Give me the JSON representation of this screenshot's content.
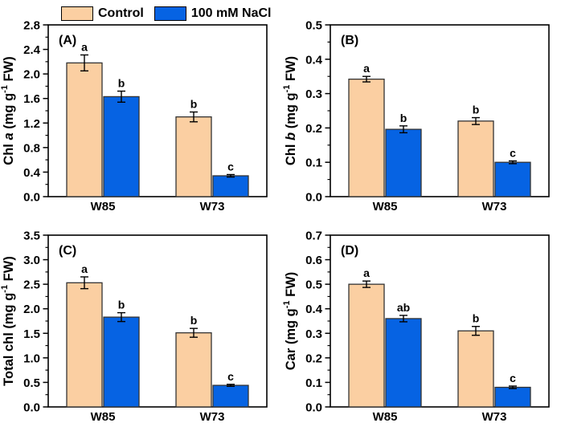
{
  "legend": {
    "items": [
      {
        "label": "Control",
        "color": "#fbcfa2"
      },
      {
        "label": "100 mM NaCl",
        "color": "#0663e3"
      }
    ]
  },
  "styles": {
    "bar_border": "#333333",
    "axis_color": "#000000",
    "error_bar_color": "#000000",
    "text_color": "#000000",
    "background": "#ffffff"
  },
  "chart_data": [
    {
      "type": "bar",
      "panel_label": "(A)",
      "ylabel": "Chl a (mg g⁻¹ FW)",
      "ylabel_parts": [
        {
          "t": "Chl "
        },
        {
          "t": "a ",
          "italic": true
        },
        {
          "t": "(mg g"
        },
        {
          "t": "-1",
          "sup": true
        },
        {
          "t": " FW)"
        }
      ],
      "ylim": [
        0,
        2.8
      ],
      "ytick_step": 0.4,
      "yminor_step": 0.2,
      "tick_decimals": 1,
      "grid": false,
      "categories": [
        "W85",
        "W73"
      ],
      "series": [
        {
          "name": "Control",
          "color": "#fbcfa2",
          "values": [
            2.18,
            1.3
          ],
          "errors": [
            0.13,
            0.08
          ],
          "sig_letters": [
            "a",
            "b"
          ]
        },
        {
          "name": "100 mM NaCl",
          "color": "#0663e3",
          "values": [
            1.63,
            0.34
          ],
          "errors": [
            0.09,
            0.02
          ],
          "sig_letters": [
            "b",
            "c"
          ]
        }
      ]
    },
    {
      "type": "bar",
      "panel_label": "(B)",
      "ylabel": "Chl b (mg g⁻¹ FW)",
      "ylabel_parts": [
        {
          "t": "Chl "
        },
        {
          "t": "b ",
          "italic": true
        },
        {
          "t": "(mg g"
        },
        {
          "t": "-1",
          "sup": true
        },
        {
          "t": " FW)"
        }
      ],
      "ylim": [
        0,
        0.5
      ],
      "ytick_step": 0.1,
      "yminor_step": 0.05,
      "tick_decimals": 1,
      "grid": false,
      "categories": [
        "W85",
        "W73"
      ],
      "series": [
        {
          "name": "Control",
          "color": "#fbcfa2",
          "values": [
            0.342,
            0.22
          ],
          "errors": [
            0.008,
            0.01
          ],
          "sig_letters": [
            "a",
            "b"
          ]
        },
        {
          "name": "100 mM NaCl",
          "color": "#0663e3",
          "values": [
            0.196,
            0.1
          ],
          "errors": [
            0.01,
            0.004
          ],
          "sig_letters": [
            "b",
            "c"
          ]
        }
      ]
    },
    {
      "type": "bar",
      "panel_label": "(C)",
      "ylabel": "Total chl (mg g⁻¹ FW)",
      "ylabel_parts": [
        {
          "t": "Total chl (mg g"
        },
        {
          "t": "-1",
          "sup": true
        },
        {
          "t": " FW)"
        }
      ],
      "ylim": [
        0,
        3.5
      ],
      "ytick_step": 0.5,
      "yminor_step": 0.25,
      "tick_decimals": 1,
      "grid": false,
      "categories": [
        "W85",
        "W73"
      ],
      "series": [
        {
          "name": "Control",
          "color": "#fbcfa2",
          "values": [
            2.53,
            1.51
          ],
          "errors": [
            0.12,
            0.09
          ],
          "sig_letters": [
            "a",
            "b"
          ]
        },
        {
          "name": "100 mM NaCl",
          "color": "#0663e3",
          "values": [
            1.83,
            0.44
          ],
          "errors": [
            0.09,
            0.02
          ],
          "sig_letters": [
            "b",
            "c"
          ]
        }
      ]
    },
    {
      "type": "bar",
      "panel_label": "(D)",
      "ylabel": "Car (mg g⁻¹ FW)",
      "ylabel_parts": [
        {
          "t": "Car (mg g"
        },
        {
          "t": "-1",
          "sup": true
        },
        {
          "t": " FW)"
        }
      ],
      "ylim": [
        0,
        0.7
      ],
      "ytick_step": 0.1,
      "yminor_step": 0.05,
      "tick_decimals": 1,
      "grid": false,
      "categories": [
        "W85",
        "W73"
      ],
      "series": [
        {
          "name": "Control",
          "color": "#fbcfa2",
          "values": [
            0.5,
            0.31
          ],
          "errors": [
            0.013,
            0.018
          ],
          "sig_letters": [
            "a",
            "b"
          ]
        },
        {
          "name": "100 mM NaCl",
          "color": "#0663e3",
          "values": [
            0.36,
            0.08
          ],
          "errors": [
            0.013,
            0.005
          ],
          "sig_letters": [
            "ab",
            "c"
          ]
        }
      ]
    }
  ]
}
